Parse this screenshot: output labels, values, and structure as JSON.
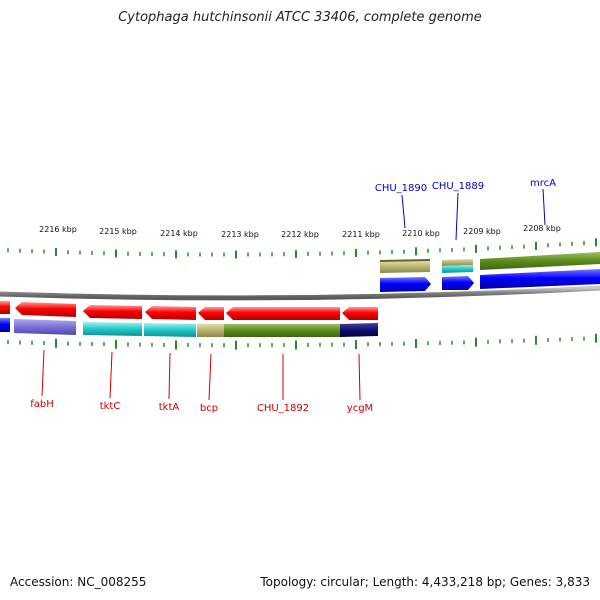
{
  "title": "Cytophaga hutchinsonii ATCC 33406, complete genome",
  "accession": "Accession: NC_008255",
  "topology": "Topology: circular; Length: 4,433,218 bp; Genes: 3,833",
  "colors": {
    "forward": "#ff0000",
    "reverse": "#0000ff",
    "backbone": "#888888",
    "tick": "#2a8a2a",
    "label_red": "#cc0000",
    "label_blue": "#0000cc"
  },
  "kbp_ticks": [
    "2216 kbp",
    "2215 kbp",
    "2214 kbp",
    "2213 kbp",
    "2212 kbp",
    "2211 kbp",
    "2210 kbp",
    "2209 kbp",
    "2208 kbp"
  ],
  "top_genes": [
    "CHU_1890",
    "CHU_1889",
    "mrcA"
  ],
  "bottom_genes": [
    "fabH",
    "tktC",
    "tktA",
    "bcp",
    "CHU_1892",
    "ycgM"
  ]
}
